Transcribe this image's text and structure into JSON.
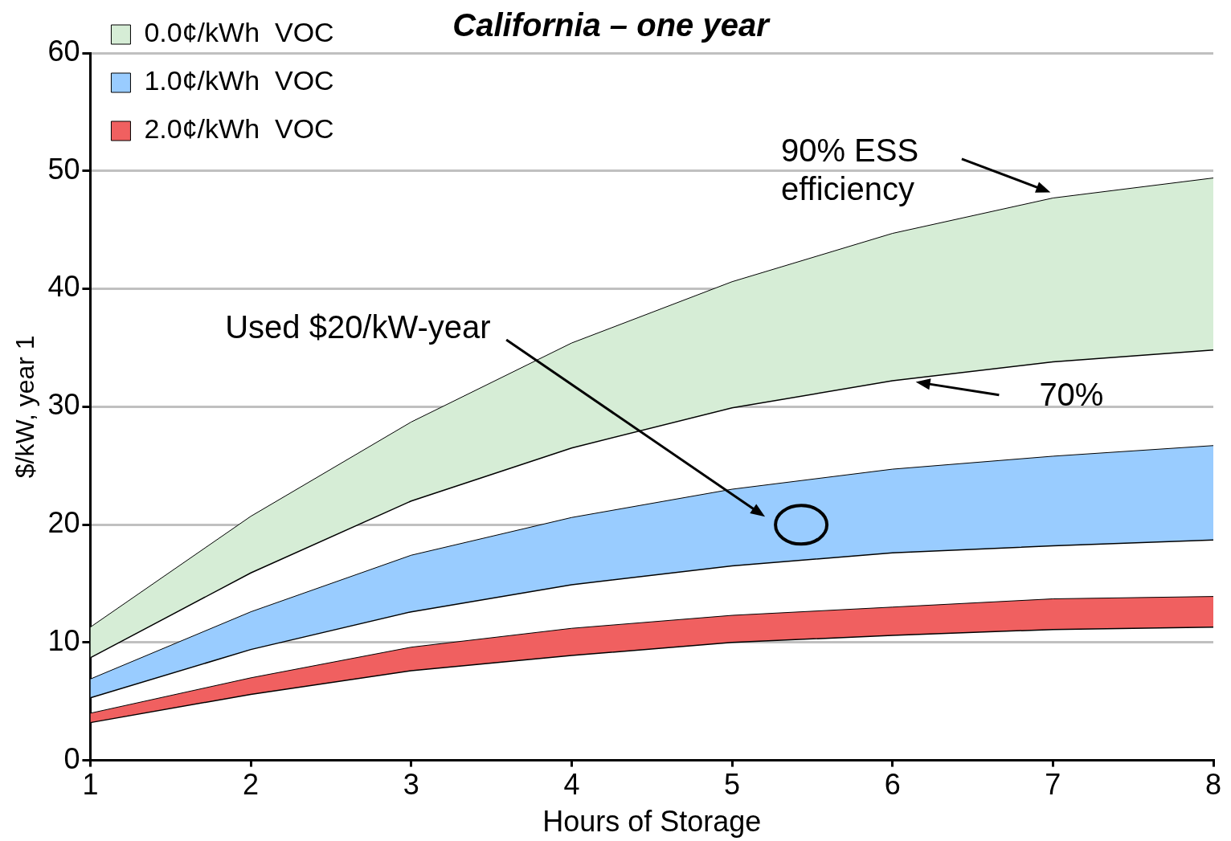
{
  "chart_data": {
    "type": "area",
    "title": "California – one year",
    "xlabel": "Hours of Storage",
    "ylabel": "$/kW, year 1",
    "x": [
      1,
      2,
      3,
      4,
      5,
      6,
      7,
      8
    ],
    "xlim": [
      1,
      8
    ],
    "xticks": [
      1,
      2,
      3,
      4,
      5,
      6,
      7,
      8
    ],
    "ylim": [
      0,
      60
    ],
    "yticks": [
      0,
      10,
      20,
      30,
      40,
      50,
      60
    ],
    "grid": "y",
    "legend": "top left",
    "series": [
      {
        "name": "0.0¢/kWh  VOC",
        "color": "#d6edd6",
        "values": [
          11.3,
          20.7,
          28.7,
          35.4,
          40.6,
          44.7,
          47.7,
          49.4
        ]
      },
      {
        "type": "line",
        "color": "#000000",
        "values": [
          8.7,
          15.9,
          22.0,
          26.5,
          29.9,
          32.2,
          33.8,
          34.8
        ]
      },
      {
        "name": "1.0¢/kWh  VOC",
        "color": "#99ccff",
        "values": [
          6.9,
          12.6,
          17.4,
          20.6,
          23.0,
          24.7,
          25.8,
          26.7
        ]
      },
      {
        "type": "line",
        "color": "#000000",
        "values": [
          5.3,
          9.4,
          12.6,
          14.9,
          16.5,
          17.6,
          18.2,
          18.7
        ]
      },
      {
        "name": "2.0¢/kWh  VOC",
        "color": "#f06060",
        "values": [
          4.0,
          7.0,
          9.6,
          11.2,
          12.3,
          13.0,
          13.7,
          13.9
        ]
      },
      {
        "type": "line",
        "color": "#000000",
        "values": [
          3.2,
          5.6,
          7.6,
          8.9,
          10.0,
          10.6,
          11.1,
          11.3
        ]
      }
    ],
    "annotations": [
      "90% ESS efficiency",
      "70%",
      "Used $20/kW-year"
    ]
  }
}
